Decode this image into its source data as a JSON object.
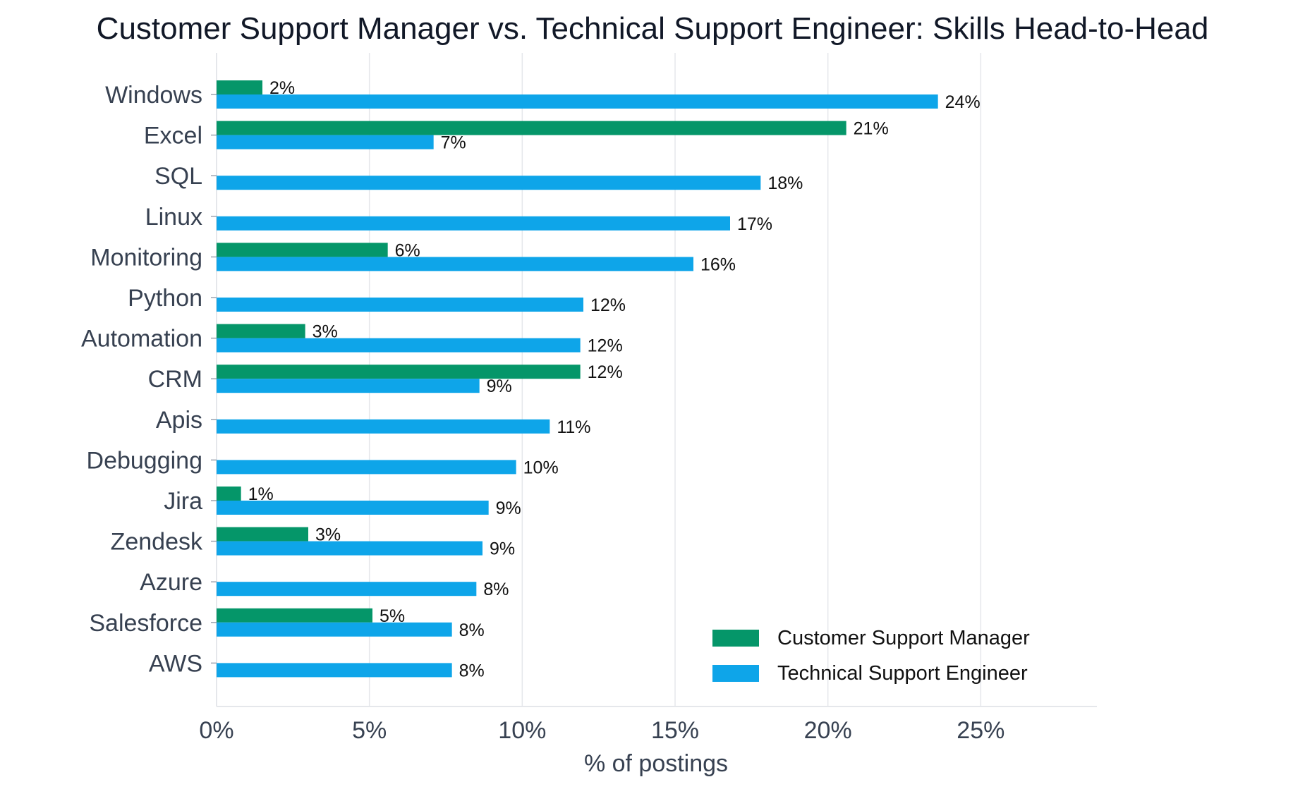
{
  "chart_data": {
    "type": "bar",
    "orientation": "horizontal",
    "title": "Customer Support Manager vs. Technical Support Engineer: Skills Head-to-Head",
    "xlabel": "% of postings",
    "ylabel": "",
    "xlim": [
      0,
      28.8
    ],
    "xticks": [
      0,
      5,
      10,
      15,
      20,
      25
    ],
    "xtick_labels": [
      "0%",
      "5%",
      "10%",
      "15%",
      "20%",
      "25%"
    ],
    "grid": "vertical",
    "legend_position": "bottom-right",
    "categories": [
      "Windows",
      "Excel",
      "SQL",
      "Linux",
      "Monitoring",
      "Python",
      "Automation",
      "CRM",
      "Apis",
      "Debugging",
      "Jira",
      "Zendesk",
      "Azure",
      "Salesforce",
      "AWS"
    ],
    "series": [
      {
        "name": "Customer Support Manager",
        "color": "#059669",
        "values": [
          1.5,
          20.6,
          null,
          null,
          5.6,
          null,
          2.9,
          11.9,
          null,
          null,
          0.8,
          3.0,
          null,
          5.1,
          null
        ],
        "labels": [
          "2%",
          "21%",
          "",
          "",
          "6%",
          "",
          "3%",
          "12%",
          "",
          "",
          "1%",
          "3%",
          "",
          "5%",
          ""
        ]
      },
      {
        "name": "Technical Support Engineer",
        "color": "#0EA5E9",
        "values": [
          23.6,
          7.1,
          17.8,
          16.8,
          15.6,
          12.0,
          11.9,
          8.6,
          10.9,
          9.8,
          8.9,
          8.7,
          8.5,
          7.7,
          7.7
        ],
        "labels": [
          "24%",
          "7%",
          "18%",
          "17%",
          "16%",
          "12%",
          "12%",
          "9%",
          "11%",
          "10%",
          "9%",
          "9%",
          "8%",
          "8%",
          "8%"
        ]
      }
    ]
  }
}
